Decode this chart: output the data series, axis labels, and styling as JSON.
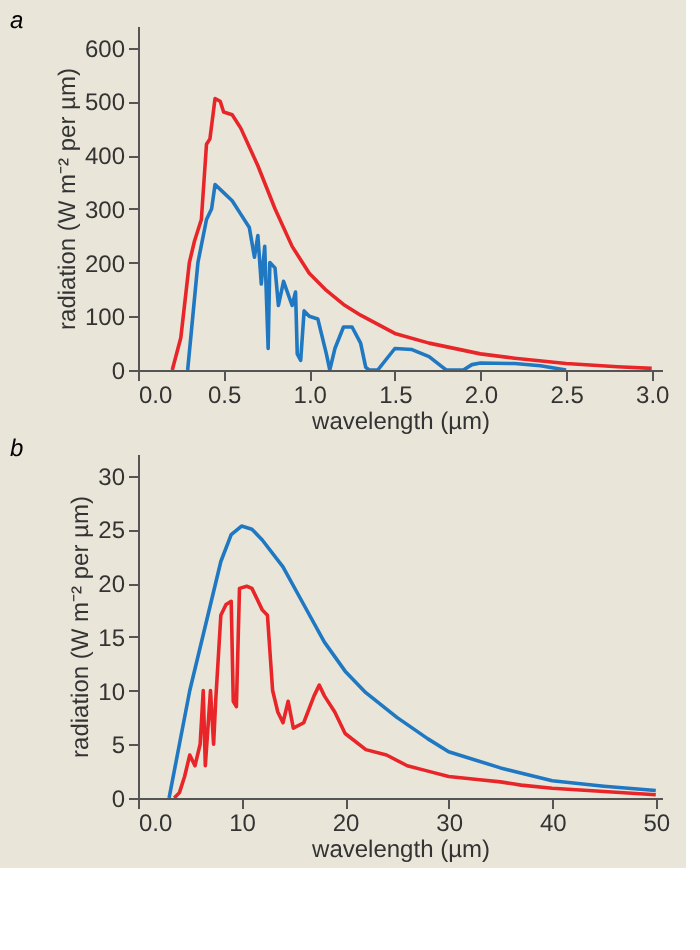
{
  "chart_data": [
    {
      "type": "line",
      "title": "a",
      "xlabel": "wavelength (µm)",
      "ylabel": "radiation (W m⁻² per µm)",
      "xlim": [
        0,
        3.06
      ],
      "ylim": [
        0,
        640
      ],
      "xticks": [
        {
          "value": 0,
          "label": "0.0"
        },
        0.5,
        {
          "value": 1,
          "label": "1.0"
        },
        1.5,
        {
          "value": 2,
          "label": "2.0"
        },
        2.5,
        {
          "value": 3,
          "label": "3.0"
        }
      ],
      "yticks": [
        0,
        100,
        200,
        300,
        400,
        500,
        600
      ],
      "grid": false,
      "series": [
        {
          "color": "#e8262a",
          "x": [
            0.2,
            0.25,
            0.3,
            0.33,
            0.37,
            0.4,
            0.42,
            0.45,
            0.48,
            0.5,
            0.55,
            0.6,
            0.7,
            0.8,
            0.9,
            1.0,
            1.1,
            1.2,
            1.3,
            1.5,
            1.7,
            2.0,
            2.2,
            2.5,
            2.8,
            3.0
          ],
          "values": [
            0,
            60,
            200,
            240,
            280,
            420,
            430,
            505,
            500,
            480,
            475,
            450,
            380,
            300,
            230,
            180,
            148,
            122,
            102,
            68,
            50,
            30,
            22,
            12,
            6,
            3
          ]
        },
        {
          "color": "#1f78c1",
          "x": [
            0.29,
            0.32,
            0.35,
            0.4,
            0.43,
            0.45,
            0.5,
            0.55,
            0.6,
            0.65,
            0.68,
            0.7,
            0.72,
            0.74,
            0.76,
            0.77,
            0.8,
            0.82,
            0.85,
            0.9,
            0.92,
            0.93,
            0.95,
            0.97,
            1.0,
            1.05,
            1.1,
            1.12,
            1.15,
            1.2,
            1.25,
            1.3,
            1.33,
            1.35,
            1.4,
            1.45,
            1.5,
            1.6,
            1.7,
            1.78,
            1.8,
            1.9,
            1.95,
            2.0,
            2.2,
            2.35,
            2.5
          ],
          "values": [
            0,
            100,
            200,
            280,
            300,
            345,
            330,
            315,
            290,
            265,
            210,
            250,
            160,
            230,
            40,
            200,
            190,
            120,
            165,
            120,
            145,
            30,
            18,
            110,
            100,
            95,
            30,
            0,
            40,
            80,
            80,
            50,
            5,
            0,
            0,
            20,
            40,
            38,
            25,
            5,
            0,
            0,
            10,
            13,
            12,
            8,
            0
          ]
        }
      ]
    },
    {
      "type": "line",
      "title": "b",
      "xlabel": "wavelength (µm)",
      "ylabel": "radiation (W m⁻² per µm)",
      "xlim": [
        0,
        50.6
      ],
      "ylim": [
        0,
        32
      ],
      "xticks": [
        {
          "value": 0,
          "label": "0.0"
        },
        10,
        20,
        30,
        40,
        50
      ],
      "yticks": [
        0,
        5,
        10,
        15,
        20,
        25,
        30
      ],
      "grid": false,
      "series": [
        {
          "color": "#1f78c1",
          "x": [
            3,
            4,
            5,
            6,
            7,
            8,
            9,
            10,
            11,
            12,
            14,
            16,
            18,
            20,
            22,
            25,
            28,
            30,
            35,
            40,
            45,
            50
          ],
          "values": [
            0,
            5,
            10,
            14,
            18,
            22,
            24.5,
            25.3,
            25,
            24,
            21.5,
            18,
            14.5,
            11.8,
            9.8,
            7.5,
            5.5,
            4.3,
            2.8,
            1.6,
            1.1,
            0.7
          ]
        },
        {
          "color": "#e8262a",
          "x": [
            3.5,
            4,
            4.5,
            5,
            5.5,
            6,
            6.3,
            6.5,
            7,
            7.3,
            7.5,
            8,
            8.5,
            9,
            9.2,
            9.5,
            9.8,
            10.5,
            11,
            12,
            12.5,
            13,
            13.5,
            14,
            14.5,
            15,
            16,
            17,
            17.5,
            18,
            19,
            20,
            22,
            24,
            26,
            28,
            30,
            33,
            35,
            37,
            40,
            45,
            50
          ],
          "values": [
            0,
            0.5,
            2,
            4,
            3,
            5,
            10,
            3,
            10,
            5,
            9,
            17,
            18,
            18.3,
            9,
            8.5,
            19.5,
            19.7,
            19.5,
            17.5,
            17,
            10,
            8,
            7,
            9,
            6.5,
            7,
            9.5,
            10.5,
            9.5,
            8,
            6,
            4.5,
            4,
            3,
            2.5,
            2,
            1.7,
            1.5,
            1.2,
            0.9,
            0.6,
            0.3
          ]
        }
      ]
    }
  ]
}
